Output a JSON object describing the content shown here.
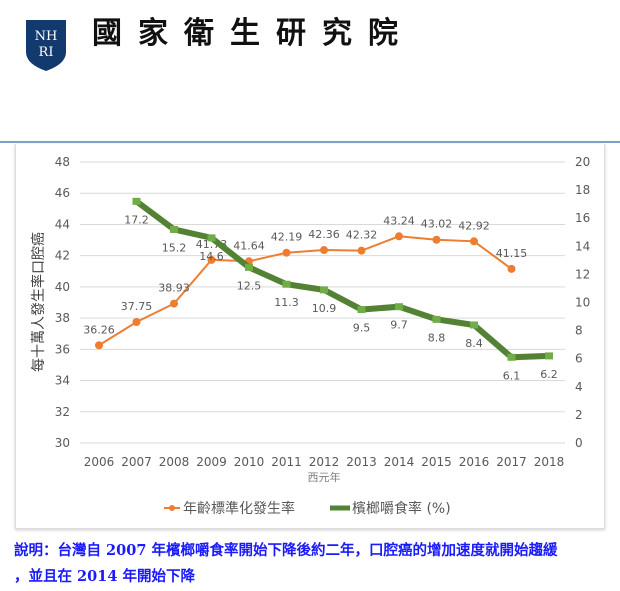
{
  "header": {
    "org_name": "國家衛生研究院",
    "logo_text": "NHRI"
  },
  "chart_data": {
    "type": "line",
    "x": [
      2006,
      2007,
      2008,
      2009,
      2010,
      2011,
      2012,
      2013,
      2014,
      2015,
      2016,
      2017,
      2018
    ],
    "xlabel": "西元年",
    "ylabel": "每十萬人發生率口腔癌",
    "ylim": [
      30,
      48
    ],
    "y2lim": [
      0,
      20
    ],
    "yticks": [
      30,
      32,
      34,
      36,
      38,
      40,
      42,
      44,
      46,
      48
    ],
    "y2ticks": [
      0,
      2,
      4,
      6,
      8,
      10,
      12,
      14,
      16,
      18,
      20
    ],
    "grid": true,
    "legend": "bottom",
    "series": [
      {
        "name": "年齡標準化發生率",
        "axis": "left",
        "color": "#ed7d31",
        "values": [
          36.26,
          37.75,
          38.93,
          41.73,
          41.64,
          42.19,
          42.36,
          42.32,
          43.24,
          43.02,
          42.92,
          41.15,
          null
        ],
        "labels": [
          "36.26",
          "37.75",
          "38.93",
          "41.73",
          "41.64",
          "42.19",
          "42.36",
          "42.32",
          "43.24",
          "43.02",
          "42.92",
          "41.15",
          ""
        ]
      },
      {
        "name": "檳榔嚼食率 (%)",
        "axis": "right",
        "color": "#548235",
        "values": [
          null,
          17.2,
          15.2,
          14.6,
          12.5,
          11.3,
          10.9,
          9.5,
          9.7,
          8.8,
          8.4,
          6.1,
          6.2
        ],
        "labels": [
          "",
          "17.2",
          "15.2",
          "14.6",
          "12.5",
          "11.3",
          "10.9",
          "9.5",
          "9.7",
          "8.8",
          "8.4",
          "6.1",
          "6.2"
        ]
      }
    ]
  },
  "note": {
    "line1": "說明：台灣自 2007 年檳榔嚼食率開始下降後約二年，口腔癌的增加速度就開始趨緩",
    "line2": "，並且在 2014 年開始下降"
  }
}
